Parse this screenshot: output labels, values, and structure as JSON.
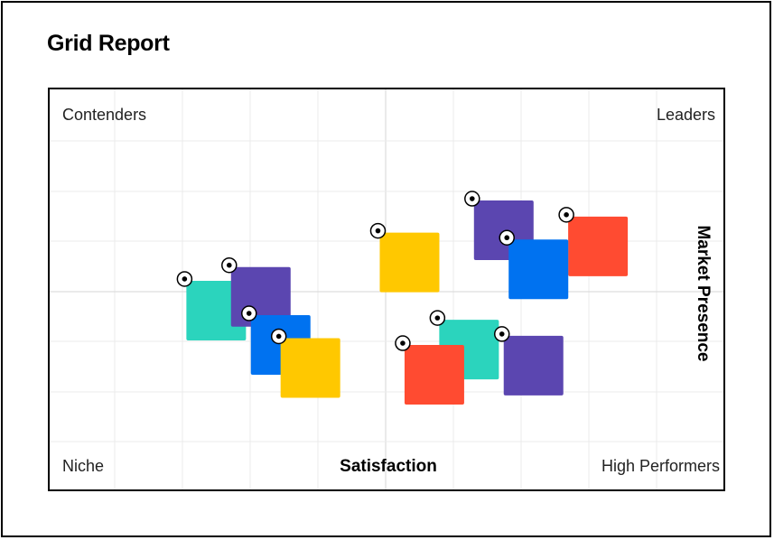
{
  "title": "Grid Report",
  "chart_data": {
    "type": "scatter",
    "xlabel": "Satisfaction",
    "ylabel": "Market Presence",
    "xlim": [
      0,
      100
    ],
    "ylim": [
      0,
      100
    ],
    "grid": true,
    "quadrants": {
      "top_left": "Contenders",
      "top_right": "Leaders",
      "bottom_left": "Niche",
      "bottom_right": "High Performers"
    },
    "colors": [
      "#5B46B0",
      "#FF4B31",
      "#0072F0",
      "#FFC800",
      "#2BD4BD"
    ],
    "points": [
      {
        "x": 13,
        "y": 39,
        "color": "#2BD4BD"
      },
      {
        "x": 22,
        "y": 45,
        "color": "#5B46B0"
      },
      {
        "x": 26,
        "y": 24,
        "color": "#0072F0"
      },
      {
        "x": 32,
        "y": 14,
        "color": "#FFC800"
      },
      {
        "x": 52,
        "y": 60,
        "color": "#FFC800"
      },
      {
        "x": 71,
        "y": 74,
        "color": "#5B46B0"
      },
      {
        "x": 90,
        "y": 67,
        "color": "#FF4B31"
      },
      {
        "x": 78,
        "y": 57,
        "color": "#0072F0"
      },
      {
        "x": 64,
        "y": 22,
        "color": "#2BD4BD"
      },
      {
        "x": 57,
        "y": 11,
        "color": "#FF4B31"
      },
      {
        "x": 77,
        "y": 15,
        "color": "#5B46B0"
      }
    ]
  }
}
